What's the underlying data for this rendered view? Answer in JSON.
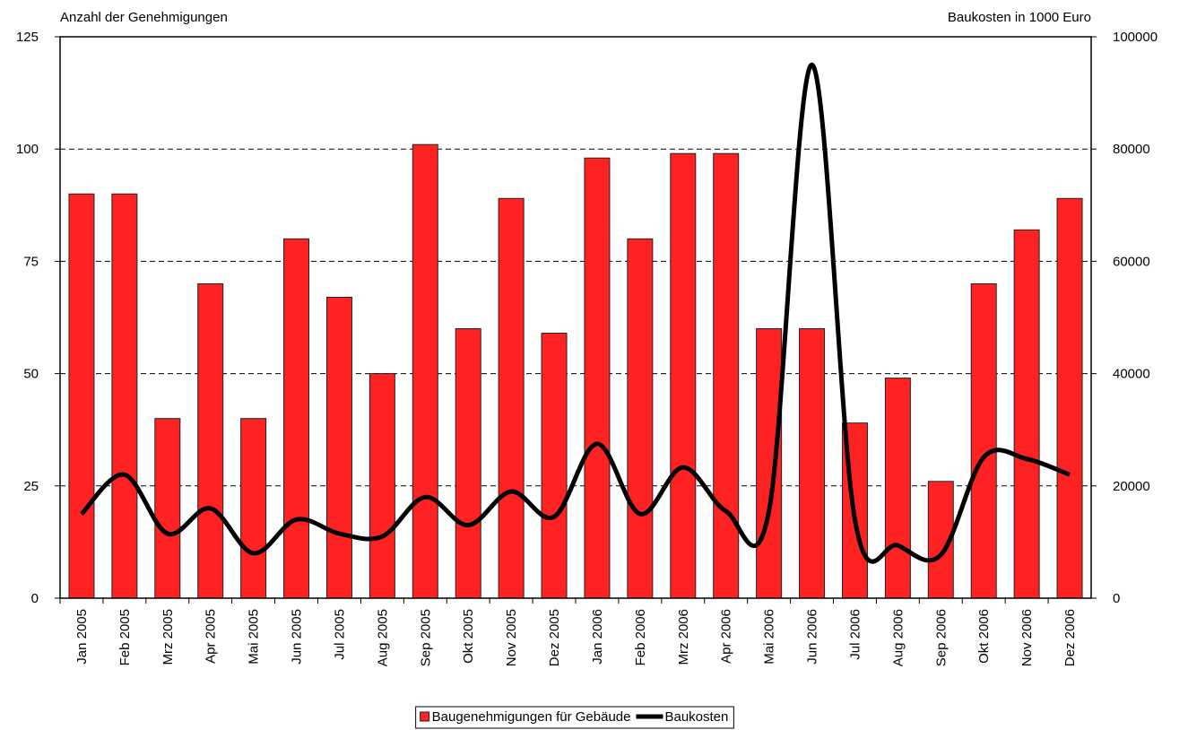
{
  "chart_data": {
    "type": "bar",
    "y_label": "Anzahl der Genehmigungen",
    "y2_label": "Baukosten in 1000 Euro",
    "categories": [
      "Jan 2005",
      "Feb 2005",
      "Mrz 2005",
      "Apr 2005",
      "Mai 2005",
      "Jun 2005",
      "Jul 2005",
      "Aug 2005",
      "Sep 2005",
      "Okt 2005",
      "Nov 2005",
      "Dez 2005",
      "Jan 2006",
      "Feb 2006",
      "Mrz 2006",
      "Apr 2006",
      "Mai 2006",
      "Jun 2006",
      "Jul 2006",
      "Aug 2006",
      "Sep 2006",
      "Okt 2006",
      "Nov 2006",
      "Dez 2006"
    ],
    "series": [
      {
        "name": "Baugenehmigungen für Gebäude",
        "type": "bar",
        "color": "#ff2222",
        "values": [
          90,
          90,
          40,
          70,
          40,
          80,
          67,
          50,
          101,
          60,
          89,
          59,
          98,
          80,
          99,
          99,
          60,
          60,
          39,
          49,
          26,
          70,
          82,
          89
        ]
      },
      {
        "name": "Baukosten",
        "type": "line",
        "axis": "y2",
        "color": "#000000",
        "values": [
          15000,
          22000,
          11500,
          16000,
          8000,
          14000,
          11500,
          11000,
          18000,
          13000,
          19000,
          14500,
          27500,
          15000,
          23300,
          15500,
          15500,
          95000,
          14000,
          9400,
          7700,
          25100,
          24800,
          22000
        ]
      }
    ],
    "ylim": [
      0,
      125
    ],
    "yticks": [
      0,
      25,
      50,
      75,
      100,
      125
    ],
    "y2lim": [
      0,
      100000
    ],
    "y2ticks": [
      0,
      20000,
      40000,
      60000,
      80000,
      100000
    ],
    "grid": true,
    "legend": "bottom"
  }
}
